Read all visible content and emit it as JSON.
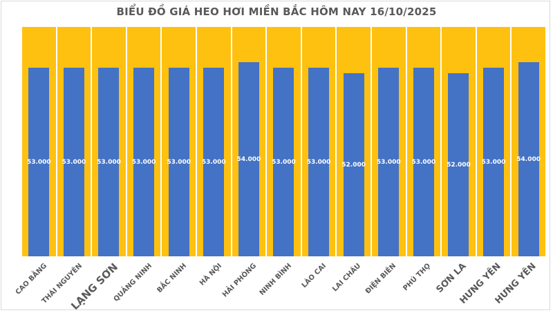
{
  "title": "BIỂU ĐỒ GIÁ HEO HƠI MIỀN BẮC HÔM NAY 16/10/2025",
  "chart_data": {
    "type": "bar",
    "title": "BIỂU ĐỒ GIÁ HEO HƠI MIỀN BẮC HÔM NAY 16/10/2025",
    "categories": [
      "CAO BẰNG",
      "THÁI NGUYÊN",
      "LẠNG SƠN",
      "QUẢNG NINH",
      "BẮC NINH",
      "HÀ NỘI",
      "HẢI PHÒNG",
      "NINH BÌNH",
      "LÀO CAI",
      "LAI CHÂU",
      "ĐIỆN BIÊN",
      "PHÚ THỌ",
      "SƠN LA",
      "HƯNG YÊN",
      "HƯNG YÊN"
    ],
    "values": [
      53000,
      53000,
      53000,
      53000,
      53000,
      53000,
      54000,
      53000,
      53000,
      52000,
      53000,
      53000,
      52000,
      53000,
      54000
    ],
    "value_labels": [
      "53.000",
      "53.000",
      "53.000",
      "53.000",
      "53.000",
      "53.000",
      "54.000",
      "53.000",
      "53.000",
      "52.000",
      "53.000",
      "53.000",
      "52.000",
      "53.000",
      "54.000"
    ],
    "xlabel": "",
    "ylabel": "",
    "legend": "none",
    "gridlines": "white-vertical-between-columns",
    "bar_color": "#4472C4",
    "column_background_color": "#FFC110",
    "value_label_color": "#FFFFFF",
    "category_label_color": "#595959",
    "title_color": "#595959",
    "frame_border_color": "#D9D9D9",
    "category_label_font_px": [
      10,
      10,
      15,
      10,
      10,
      10,
      10,
      10,
      10,
      10,
      10,
      10,
      13,
      13,
      13
    ]
  }
}
